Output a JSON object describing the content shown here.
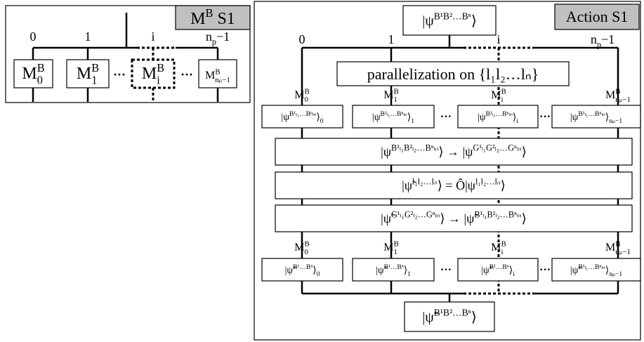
{
  "left": {
    "title": [
      [
        "M",
        "n"
      ],
      [
        "B",
        "sup"
      ],
      [
        " S1",
        "n"
      ]
    ],
    "branch_labels": [
      [
        [
          "0",
          "n"
        ]
      ],
      [
        [
          "1",
          "n"
        ]
      ],
      [
        [
          "i",
          "n"
        ]
      ],
      [
        [
          "n",
          "n"
        ],
        [
          "p",
          "sub"
        ],
        [
          "−1",
          "n"
        ]
      ]
    ],
    "nodes": [
      [
        [
          "M",
          "n"
        ],
        [
          "B",
          "sup"
        ],
        [
          "0",
          "subx"
        ]
      ],
      [
        [
          "M",
          "n"
        ],
        [
          "B",
          "sup"
        ],
        [
          "1",
          "subx"
        ]
      ],
      [
        [
          "M",
          "n"
        ],
        [
          "B",
          "sup"
        ],
        [
          "i",
          "subx"
        ]
      ],
      [
        [
          "M",
          "n"
        ],
        [
          "B",
          "sup"
        ],
        [
          "nₚ−1",
          "subx"
        ]
      ]
    ]
  },
  "right": {
    "title": [
      [
        "Action S1",
        "n"
      ]
    ],
    "top": [
      [
        "|ψ",
        "n"
      ],
      [
        "B¹B²…Bⁿ",
        "sup"
      ],
      [
        "⟩",
        "n"
      ]
    ],
    "branch_labels": [
      [
        [
          "0",
          "n"
        ]
      ],
      [
        [
          "1",
          "n"
        ]
      ],
      [
        [
          "i",
          "n"
        ]
      ],
      [
        [
          "n",
          "n"
        ],
        [
          "p",
          "sub"
        ],
        [
          "−1",
          "n"
        ]
      ]
    ],
    "parallel": [
      [
        "parallelization on {l₁l₂…lₙ}",
        "n"
      ]
    ],
    "node_labels": [
      [
        [
          "M",
          "n"
        ],
        [
          "B",
          "sup"
        ],
        [
          "0",
          "subx"
        ]
      ],
      [
        [
          "M",
          "n"
        ],
        [
          "B",
          "sup"
        ],
        [
          "1",
          "subx"
        ]
      ],
      [
        [
          "M",
          "n"
        ],
        [
          "B",
          "sup"
        ],
        [
          "i",
          "subx"
        ]
      ],
      [
        [
          "M",
          "n"
        ],
        [
          "B",
          "sup"
        ],
        [
          "nₚ−1",
          "subx"
        ]
      ]
    ],
    "row1": [
      [
        [
          "|ψ",
          "n"
        ],
        [
          "B¹ₗ₁…Bⁿₗₙ",
          "sup"
        ],
        [
          "⟩",
          "n"
        ],
        [
          "0",
          "sub"
        ]
      ],
      [
        [
          "|ψ",
          "n"
        ],
        [
          "B¹ₗ₁…Bⁿₗₙ",
          "sup"
        ],
        [
          "⟩",
          "n"
        ],
        [
          "1",
          "sub"
        ]
      ],
      [
        [
          "|ψ",
          "n"
        ],
        [
          "B¹ₗ₁…Bⁿₗₙ",
          "sup"
        ],
        [
          "⟩",
          "n"
        ],
        [
          "i",
          "sub"
        ]
      ],
      [
        [
          "|ψ",
          "n"
        ],
        [
          "B¹ₗ₁…Bⁿₗₙ",
          "sup"
        ],
        [
          "⟩",
          "n"
        ],
        [
          "nₚ−1",
          "sub"
        ]
      ]
    ],
    "ops": [
      [
        [
          "|ψ",
          "n"
        ],
        [
          "B¹ₗ₁B²ₗ₂…Bⁿₗₙ",
          "sup"
        ],
        [
          "⟩ → |ψ",
          "n"
        ],
        [
          "G¹ₗ₁G²ₗ₂…Gⁿₗₙ",
          "sup"
        ],
        [
          "⟩",
          "n"
        ]
      ],
      [
        [
          "|ψ̃",
          "n"
        ],
        [
          "l₁l₂…lₙ",
          "sup"
        ],
        [
          "⟩ = Ô|ψ",
          "n"
        ],
        [
          "l₁l₂…lₙ",
          "sup"
        ],
        [
          "⟩",
          "n"
        ]
      ],
      [
        [
          "|ψ̃",
          "n"
        ],
        [
          "G¹ₗ₁G²ₗ₂…Gⁿₗₙ",
          "sup"
        ],
        [
          "⟩ → |ψ̃",
          "n"
        ],
        [
          "B¹ₗ₁B²ₗ₂…Bⁿₗₙ",
          "sup"
        ],
        [
          "⟩",
          "n"
        ]
      ]
    ],
    "row2": [
      [
        [
          "|ψ̃",
          "n"
        ],
        [
          "B¹…Bⁿ",
          "sup"
        ],
        [
          "⟩",
          "n"
        ],
        [
          "0",
          "sub"
        ]
      ],
      [
        [
          "|ψ̃",
          "n"
        ],
        [
          "B¹…Bⁿ",
          "sup"
        ],
        [
          "⟩",
          "n"
        ],
        [
          "1",
          "sub"
        ]
      ],
      [
        [
          "|ψ̃",
          "n"
        ],
        [
          "B¹…Bⁿ",
          "sup"
        ],
        [
          "⟩",
          "n"
        ],
        [
          "i",
          "sub"
        ]
      ],
      [
        [
          "|ψ̃",
          "n"
        ],
        [
          "B¹ₗ₁…Bⁿₗₙ",
          "sup"
        ],
        [
          "⟩",
          "n"
        ],
        [
          "nₚ−1",
          "sub"
        ]
      ]
    ],
    "bottom": [
      [
        "|ψ̃",
        "n"
      ],
      [
        "B¹B²…Bⁿ",
        "sup"
      ],
      [
        "⟩",
        "n"
      ]
    ]
  },
  "ellipsis": "···"
}
